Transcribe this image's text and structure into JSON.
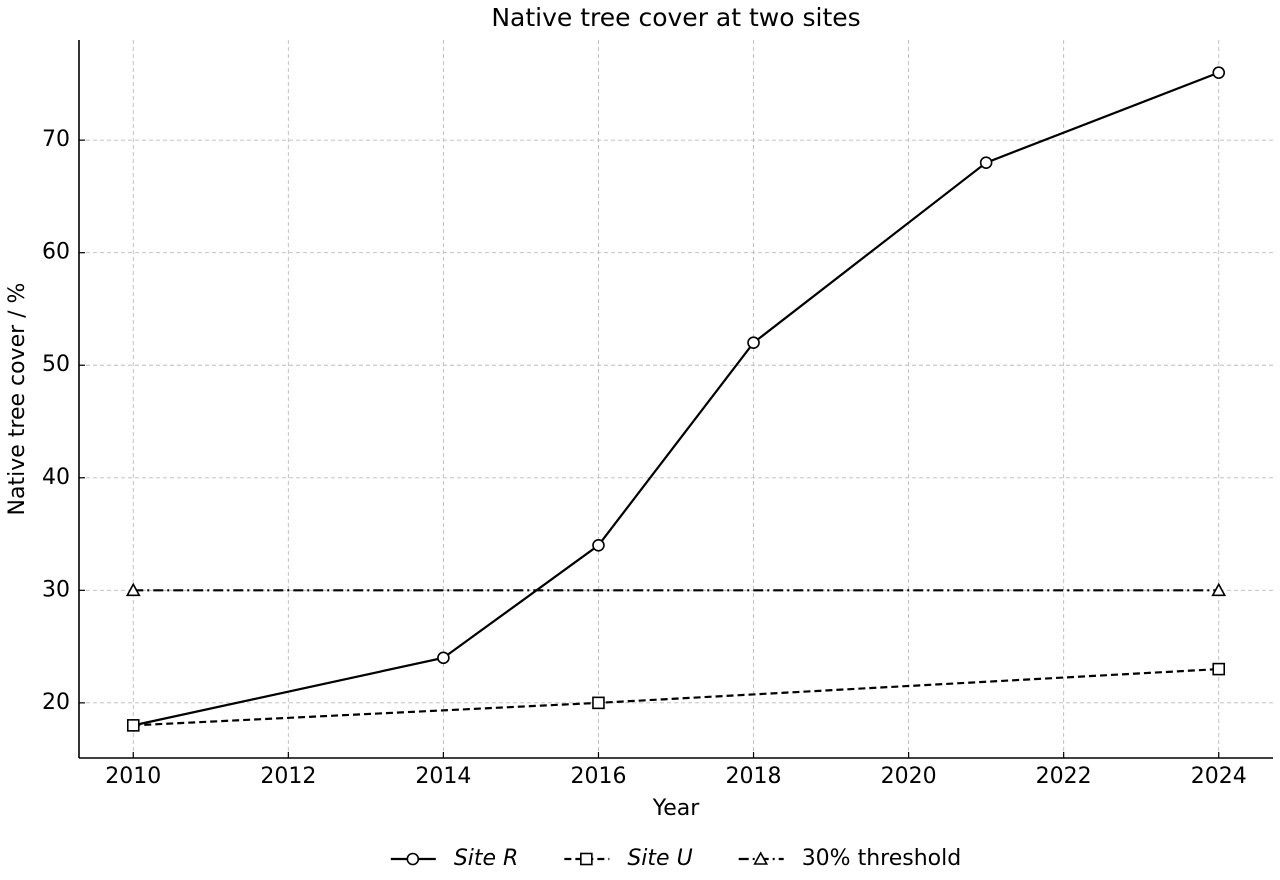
{
  "chart_data": {
    "type": "line",
    "title": "Native tree cover at two sites",
    "x_label": "Year",
    "y_label": "Native tree cover / %",
    "xlim": [
      2009.3,
      2024.7
    ],
    "xticks": [
      2010,
      2012,
      2014,
      2016,
      2018,
      2020,
      2022,
      2024
    ],
    "ylim": [
      15.1,
      78.9
    ],
    "yticks": [
      20,
      30,
      40,
      50,
      60,
      70
    ],
    "grid": true,
    "legend": "bottom",
    "series": [
      {
        "name": "Site R",
        "color": "#000000",
        "linestyle": "solid",
        "marker": "circle",
        "font_style": "italic",
        "x": [
          2010,
          2014,
          2016,
          2018,
          2021,
          2024
        ],
        "values": [
          18,
          24,
          34,
          52,
          68,
          76
        ]
      },
      {
        "name": "Site U",
        "color": "#000000",
        "linestyle": "dashed",
        "marker": "square",
        "font_style": "italic",
        "x": [
          2010,
          2016,
          2024
        ],
        "values": [
          18,
          20,
          23
        ]
      },
      {
        "name": "30% threshold",
        "color": "#000000",
        "linestyle": "dashdot",
        "marker": "triangle",
        "font_style": "normal",
        "x": [
          2010,
          2024
        ],
        "values": [
          30,
          30
        ]
      }
    ]
  }
}
